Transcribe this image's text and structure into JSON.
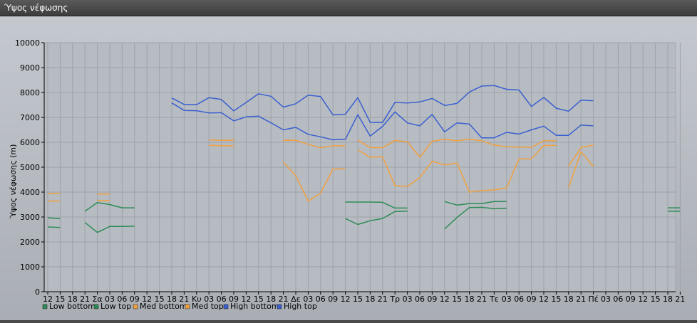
{
  "window": {
    "title": "Ύψος νέφωσης"
  },
  "chart_data": {
    "type": "line",
    "ylabel": "Ύψος νέφωσης (m)",
    "ylim": [
      0,
      10000
    ],
    "yticks": [
      0,
      1000,
      2000,
      3000,
      4000,
      5000,
      6000,
      7000,
      8000,
      9000,
      10000
    ],
    "grid": true,
    "legend_position": "bottom-left",
    "x_tick_labels": [
      "12",
      "15",
      "18",
      "21",
      "Σα",
      "03",
      "06",
      "09",
      "12",
      "15",
      "18",
      "21",
      "Κυ",
      "03",
      "06",
      "09",
      "12",
      "15",
      "18",
      "21",
      "Δε",
      "03",
      "06",
      "09",
      "12",
      "15",
      "18",
      "21",
      "Τρ",
      "03",
      "06",
      "09",
      "12",
      "15",
      "18",
      "21",
      "Τε",
      "03",
      "06",
      "09",
      "12",
      "15",
      "18",
      "21",
      "Πέ",
      "03",
      "06",
      "09",
      "12",
      "15",
      "18",
      "21"
    ],
    "series": [
      {
        "name": "Low bottom",
        "color": "#2e8b57",
        "segments": [
          [
            [
              0,
              2600
            ],
            [
              1,
              2580
            ]
          ],
          [
            [
              3,
              2780
            ],
            [
              4,
              2380
            ],
            [
              5,
              2620
            ],
            [
              6,
              2620
            ],
            [
              7,
              2630
            ]
          ],
          [
            [
              24,
              2940
            ],
            [
              25,
              2700
            ],
            [
              26,
              2850
            ],
            [
              27,
              2940
            ],
            [
              28,
              3220
            ],
            [
              29,
              3230
            ]
          ],
          [
            [
              32,
              2520
            ],
            [
              33,
              2980
            ],
            [
              34,
              3380
            ],
            [
              35,
              3390
            ],
            [
              36,
              3330
            ],
            [
              37,
              3350
            ]
          ],
          [
            [
              50,
              3230
            ],
            [
              51,
              3230
            ]
          ]
        ]
      },
      {
        "name": "Low top",
        "color": "#2e8b57",
        "segments": [
          [
            [
              0,
              2970
            ],
            [
              1,
              2930
            ]
          ],
          [
            [
              3,
              3230
            ],
            [
              4,
              3580
            ],
            [
              5,
              3500
            ],
            [
              6,
              3370
            ],
            [
              7,
              3370
            ]
          ],
          [
            [
              24,
              3600
            ],
            [
              25,
              3600
            ],
            [
              26,
              3600
            ],
            [
              27,
              3590
            ],
            [
              28,
              3360
            ],
            [
              29,
              3360
            ]
          ],
          [
            [
              32,
              3620
            ],
            [
              33,
              3480
            ],
            [
              34,
              3540
            ],
            [
              35,
              3540
            ],
            [
              36,
              3620
            ],
            [
              37,
              3620
            ]
          ],
          [
            [
              50,
              3370
            ],
            [
              51,
              3370
            ]
          ]
        ]
      },
      {
        "name": "Med bottom",
        "color": "#f0a040",
        "segments": [
          [
            [
              0,
              3640
            ],
            [
              1,
              3640
            ]
          ],
          [
            [
              4,
              3660
            ],
            [
              5,
              3660
            ]
          ],
          [
            [
              13,
              5880
            ],
            [
              14,
              5860
            ],
            [
              15,
              5860
            ]
          ],
          [
            [
              19,
              5200
            ],
            [
              20,
              4660
            ],
            [
              21,
              3640
            ],
            [
              22,
              3950
            ],
            [
              23,
              4930
            ],
            [
              24,
              4930
            ]
          ],
          [
            [
              25,
              5700
            ],
            [
              26,
              5400
            ],
            [
              27,
              5420
            ],
            [
              28,
              4260
            ],
            [
              29,
              4230
            ],
            [
              30,
              4580
            ],
            [
              31,
              5240
            ],
            [
              32,
              5090
            ],
            [
              33,
              5170
            ],
            [
              34,
              4000
            ],
            [
              35,
              4060
            ],
            [
              36,
              4090
            ],
            [
              37,
              4170
            ],
            [
              38,
              5330
            ],
            [
              39,
              5340
            ],
            [
              40,
              5870
            ],
            [
              41,
              5880
            ]
          ],
          [
            [
              42,
              4180
            ],
            [
              43,
              5620
            ],
            [
              44,
              5030
            ]
          ]
        ]
      },
      {
        "name": "Med top",
        "color": "#f0a040",
        "segments": [
          [
            [
              0,
              3950
            ],
            [
              1,
              3950
            ]
          ],
          [
            [
              4,
              3920
            ],
            [
              5,
              3920
            ]
          ],
          [
            [
              13,
              6100
            ],
            [
              14,
              6080
            ],
            [
              15,
              6080
            ]
          ],
          [
            [
              19,
              6080
            ],
            [
              20,
              6080
            ],
            [
              21,
              5920
            ],
            [
              22,
              5780
            ],
            [
              23,
              5860
            ],
            [
              24,
              5860
            ]
          ],
          [
            [
              25,
              6090
            ],
            [
              26,
              5790
            ],
            [
              27,
              5780
            ],
            [
              28,
              6080
            ],
            [
              29,
              6020
            ],
            [
              30,
              5400
            ],
            [
              31,
              6040
            ],
            [
              32,
              6120
            ],
            [
              33,
              6060
            ],
            [
              34,
              6120
            ],
            [
              35,
              6060
            ],
            [
              36,
              5890
            ],
            [
              37,
              5820
            ],
            [
              38,
              5810
            ],
            [
              39,
              5800
            ],
            [
              40,
              6060
            ],
            [
              41,
              6060
            ]
          ],
          [
            [
              42,
              5040
            ],
            [
              43,
              5790
            ],
            [
              44,
              5890
            ]
          ]
        ]
      },
      {
        "name": "High bottom",
        "color": "#3a5fd0",
        "segments": [
          [
            [
              10,
              7580
            ],
            [
              11,
              7280
            ],
            [
              12,
              7270
            ],
            [
              13,
              7180
            ],
            [
              14,
              7190
            ],
            [
              15,
              6860
            ],
            [
              16,
              7020
            ],
            [
              17,
              7050
            ],
            [
              18,
              6780
            ],
            [
              19,
              6500
            ],
            [
              20,
              6600
            ],
            [
              21,
              6320
            ],
            [
              22,
              6220
            ],
            [
              23,
              6100
            ],
            [
              24,
              6120
            ],
            [
              25,
              7110
            ],
            [
              26,
              6250
            ],
            [
              27,
              6640
            ],
            [
              28,
              7220
            ],
            [
              29,
              6780
            ],
            [
              30,
              6660
            ],
            [
              31,
              7120
            ],
            [
              32,
              6420
            ],
            [
              33,
              6780
            ],
            [
              34,
              6730
            ],
            [
              35,
              6180
            ],
            [
              36,
              6180
            ],
            [
              37,
              6400
            ],
            [
              38,
              6330
            ],
            [
              39,
              6500
            ],
            [
              40,
              6650
            ],
            [
              41,
              6280
            ],
            [
              42,
              6280
            ],
            [
              43,
              6690
            ],
            [
              44,
              6660
            ]
          ]
        ]
      },
      {
        "name": "High top",
        "color": "#3a5fd0",
        "segments": [
          [
            [
              10,
              7780
            ],
            [
              11,
              7520
            ],
            [
              12,
              7510
            ],
            [
              13,
              7790
            ],
            [
              14,
              7720
            ],
            [
              15,
              7260
            ],
            [
              16,
              7600
            ],
            [
              17,
              7950
            ],
            [
              18,
              7850
            ],
            [
              19,
              7410
            ],
            [
              20,
              7550
            ],
            [
              21,
              7890
            ],
            [
              22,
              7840
            ],
            [
              23,
              7100
            ],
            [
              24,
              7130
            ],
            [
              25,
              7790
            ],
            [
              26,
              6800
            ],
            [
              27,
              6790
            ],
            [
              28,
              7600
            ],
            [
              29,
              7580
            ],
            [
              30,
              7620
            ],
            [
              31,
              7760
            ],
            [
              32,
              7480
            ],
            [
              33,
              7560
            ],
            [
              34,
              8020
            ],
            [
              35,
              8260
            ],
            [
              36,
              8280
            ],
            [
              37,
              8130
            ],
            [
              38,
              8100
            ],
            [
              39,
              7440
            ],
            [
              40,
              7800
            ],
            [
              41,
              7370
            ],
            [
              42,
              7250
            ],
            [
              43,
              7690
            ],
            [
              44,
              7670
            ]
          ]
        ]
      }
    ]
  }
}
